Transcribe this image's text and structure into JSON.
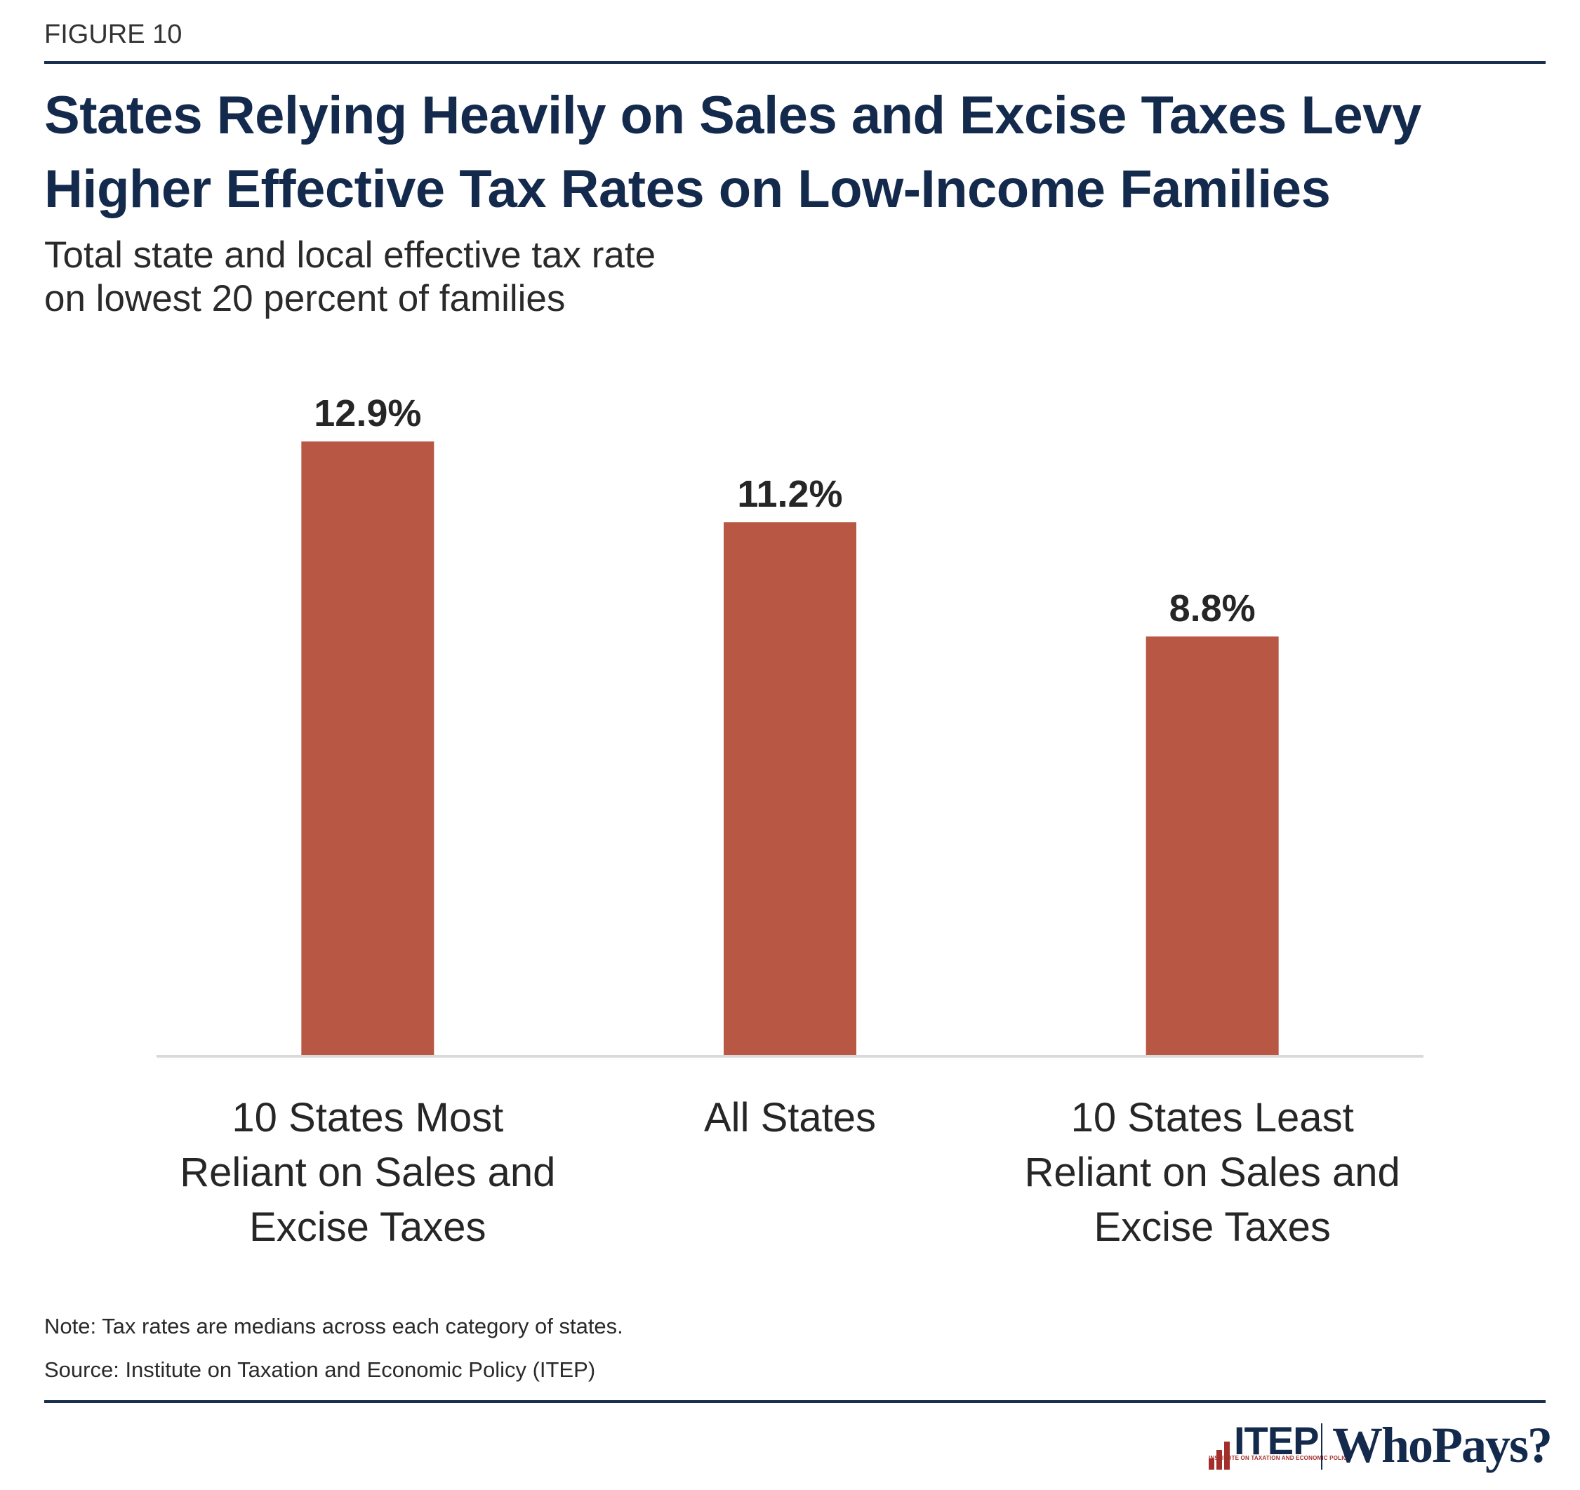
{
  "header": {
    "figure_label": "FIGURE 10",
    "title_lines": [
      "States Relying Heavily on Sales and Excise Taxes Levy",
      "Higher Effective Tax Rates on Low-Income Families"
    ],
    "subtitle_lines": [
      "Total state and local effective tax rate",
      "on lowest 20 percent of families"
    ]
  },
  "chart_data": {
    "type": "bar",
    "title": "States Relying Heavily on Sales and Excise Taxes Levy Higher Effective Tax Rates on Low-Income Families",
    "subtitle": "Total state and local effective tax rate on lowest 20 percent of families",
    "categories": [
      "10 States Most Reliant on Sales and Excise Taxes",
      "All States",
      "10 States Least Reliant on Sales and Excise Taxes"
    ],
    "category_label_lines": [
      [
        "10 States Most",
        "Reliant on Sales and",
        "Excise Taxes"
      ],
      [
        "All States"
      ],
      [
        "10 States Least",
        "Reliant on Sales and",
        "Excise Taxes"
      ]
    ],
    "values": [
      12.9,
      11.2,
      8.8
    ],
    "value_labels": [
      "12.9%",
      "11.2%",
      "8.8%"
    ],
    "unit": "%",
    "xlabel": "",
    "ylabel": "",
    "ylim": [
      0,
      12.9
    ],
    "grid": false,
    "legend": "none",
    "bar_color": "#b85743",
    "axis_color": "#d9d9d9"
  },
  "footer": {
    "note": "Note: Tax rates are medians across each category of states.",
    "source": "Source: Institute on Taxation and Economic Policy (ITEP)"
  },
  "branding": {
    "itep_wordmark": "ITEP",
    "itep_full_name": "INSTITUTE ON TAXATION AND ECONOMIC POLICY",
    "product_name": "WhoPays?",
    "navy": "#142a4d",
    "red": "#a32f2b"
  }
}
